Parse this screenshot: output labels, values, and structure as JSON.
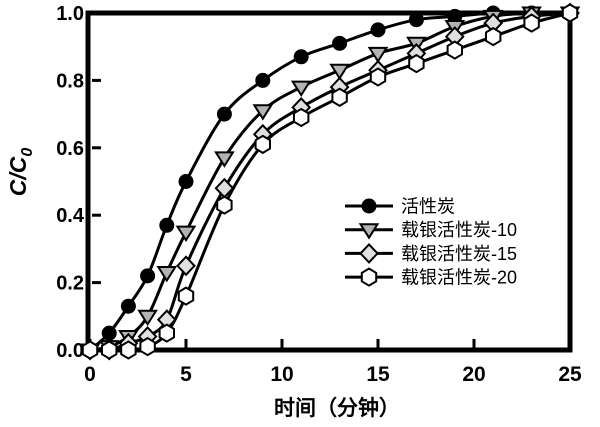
{
  "figure": {
    "background": "#ffffff",
    "frame_color": "#000000",
    "text_color": "#000000"
  },
  "chart_data": {
    "type": "line",
    "title": "",
    "xlabel": "时间（分钟）",
    "ylabel": "C/C0",
    "ylabel_main": "C/C",
    "ylabel_sub": "0",
    "xlim": [
      0,
      25
    ],
    "ylim": [
      0.0,
      1.0
    ],
    "x_ticks": [
      0,
      5,
      10,
      15,
      20,
      25
    ],
    "x_tick_labels": [
      "0",
      "5",
      "10",
      "15",
      "20",
      "25"
    ],
    "y_ticks": [
      0.0,
      0.2,
      0.4,
      0.6,
      0.8,
      1.0
    ],
    "y_tick_labels": [
      "0.0",
      "0.2",
      "0.4",
      "0.6",
      "0.8",
      "1.0"
    ],
    "grid": false,
    "legend_position": "inside-middle-right",
    "line_color": "#000000",
    "x": [
      0,
      1,
      2,
      3,
      4,
      5,
      7,
      9,
      11,
      13,
      15,
      17,
      19,
      21,
      23,
      25
    ],
    "series": [
      {
        "name": "活性炭",
        "marker": "circle",
        "marker_fill": "#000000",
        "values": [
          0.0,
          0.05,
          0.13,
          0.22,
          0.37,
          0.5,
          0.7,
          0.8,
          0.87,
          0.91,
          0.95,
          0.98,
          0.99,
          1.0,
          1.0,
          1.0
        ]
      },
      {
        "name": "载银活性炭-10",
        "marker": "triangle-down",
        "marker_fill": "#b3b3b3",
        "values": [
          0.0,
          0.01,
          0.04,
          0.1,
          0.23,
          0.35,
          0.57,
          0.71,
          0.78,
          0.83,
          0.88,
          0.91,
          0.96,
          0.99,
          1.0,
          1.0
        ]
      },
      {
        "name": "载银活性炭-15",
        "marker": "diamond",
        "marker_fill": "#e0e0e0",
        "values": [
          0.0,
          0.0,
          0.02,
          0.04,
          0.09,
          0.25,
          0.48,
          0.64,
          0.72,
          0.78,
          0.83,
          0.88,
          0.93,
          0.97,
          0.99,
          1.0
        ]
      },
      {
        "name": "载银活性炭-20",
        "marker": "hexagon",
        "marker_fill": "#ffffff",
        "values": [
          0.0,
          0.0,
          0.0,
          0.01,
          0.05,
          0.16,
          0.43,
          0.61,
          0.69,
          0.75,
          0.81,
          0.85,
          0.89,
          0.93,
          0.97,
          1.0
        ]
      }
    ]
  }
}
